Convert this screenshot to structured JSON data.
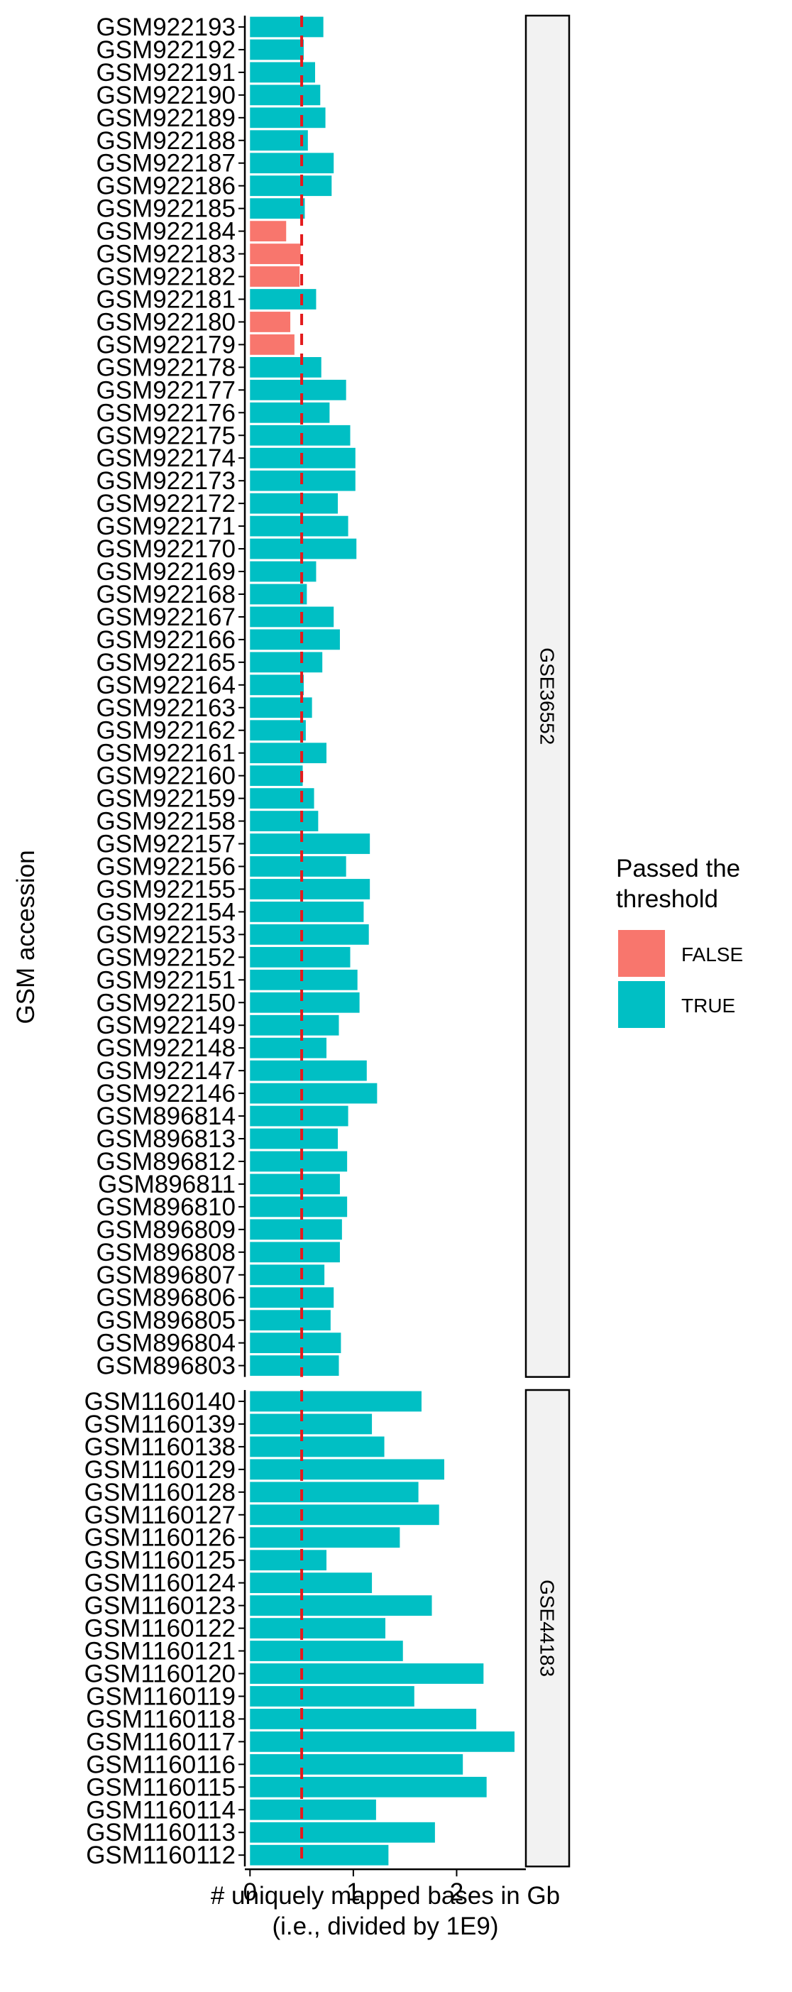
{
  "chart_data": {
    "type": "bar",
    "orientation": "horizontal",
    "xlabel_lines": [
      "# uniquely mapped bases in Gb",
      "(i.e., divided by 1E9)"
    ],
    "ylabel": "GSM accession",
    "x_ticks": [
      0,
      1,
      2
    ],
    "xlim": [
      -0.05,
      2.67
    ],
    "threshold": 0.5,
    "legend": {
      "title_lines": [
        "Passed the",
        "threshold"
      ],
      "position": "right",
      "items": [
        {
          "label": "FALSE",
          "color": "#F8766D"
        },
        {
          "label": "TRUE",
          "color": "#00BFC4"
        }
      ]
    },
    "colors": {
      "TRUE": "#00BFC4",
      "FALSE": "#F8766D",
      "threshold_line": "#E41A1C",
      "strip_fill": "#F2F2F2"
    },
    "panels": [
      {
        "name": "GSE36552",
        "bars": [
          {
            "label": "GSM922193",
            "value": 0.71,
            "passed": "TRUE"
          },
          {
            "label": "GSM922192",
            "value": 0.52,
            "passed": "TRUE"
          },
          {
            "label": "GSM922191",
            "value": 0.63,
            "passed": "TRUE"
          },
          {
            "label": "GSM922190",
            "value": 0.68,
            "passed": "TRUE"
          },
          {
            "label": "GSM922189",
            "value": 0.73,
            "passed": "TRUE"
          },
          {
            "label": "GSM922188",
            "value": 0.56,
            "passed": "TRUE"
          },
          {
            "label": "GSM922187",
            "value": 0.81,
            "passed": "TRUE"
          },
          {
            "label": "GSM922186",
            "value": 0.79,
            "passed": "TRUE"
          },
          {
            "label": "GSM922185",
            "value": 0.53,
            "passed": "TRUE"
          },
          {
            "label": "GSM922184",
            "value": 0.35,
            "passed": "FALSE"
          },
          {
            "label": "GSM922183",
            "value": 0.49,
            "passed": "FALSE"
          },
          {
            "label": "GSM922182",
            "value": 0.48,
            "passed": "FALSE"
          },
          {
            "label": "GSM922181",
            "value": 0.64,
            "passed": "TRUE"
          },
          {
            "label": "GSM922180",
            "value": 0.39,
            "passed": "FALSE"
          },
          {
            "label": "GSM922179",
            "value": 0.43,
            "passed": "FALSE"
          },
          {
            "label": "GSM922178",
            "value": 0.69,
            "passed": "TRUE"
          },
          {
            "label": "GSM922177",
            "value": 0.93,
            "passed": "TRUE"
          },
          {
            "label": "GSM922176",
            "value": 0.77,
            "passed": "TRUE"
          },
          {
            "label": "GSM922175",
            "value": 0.97,
            "passed": "TRUE"
          },
          {
            "label": "GSM922174",
            "value": 1.02,
            "passed": "TRUE"
          },
          {
            "label": "GSM922173",
            "value": 1.02,
            "passed": "TRUE"
          },
          {
            "label": "GSM922172",
            "value": 0.85,
            "passed": "TRUE"
          },
          {
            "label": "GSM922171",
            "value": 0.95,
            "passed": "TRUE"
          },
          {
            "label": "GSM922170",
            "value": 1.03,
            "passed": "TRUE"
          },
          {
            "label": "GSM922169",
            "value": 0.64,
            "passed": "TRUE"
          },
          {
            "label": "GSM922168",
            "value": 0.55,
            "passed": "TRUE"
          },
          {
            "label": "GSM922167",
            "value": 0.81,
            "passed": "TRUE"
          },
          {
            "label": "GSM922166",
            "value": 0.87,
            "passed": "TRUE"
          },
          {
            "label": "GSM922165",
            "value": 0.7,
            "passed": "TRUE"
          },
          {
            "label": "GSM922164",
            "value": 0.52,
            "passed": "TRUE"
          },
          {
            "label": "GSM922163",
            "value": 0.6,
            "passed": "TRUE"
          },
          {
            "label": "GSM922162",
            "value": 0.54,
            "passed": "TRUE"
          },
          {
            "label": "GSM922161",
            "value": 0.74,
            "passed": "TRUE"
          },
          {
            "label": "GSM922160",
            "value": 0.51,
            "passed": "TRUE"
          },
          {
            "label": "GSM922159",
            "value": 0.62,
            "passed": "TRUE"
          },
          {
            "label": "GSM922158",
            "value": 0.66,
            "passed": "TRUE"
          },
          {
            "label": "GSM922157",
            "value": 1.16,
            "passed": "TRUE"
          },
          {
            "label": "GSM922156",
            "value": 0.93,
            "passed": "TRUE"
          },
          {
            "label": "GSM922155",
            "value": 1.16,
            "passed": "TRUE"
          },
          {
            "label": "GSM922154",
            "value": 1.1,
            "passed": "TRUE"
          },
          {
            "label": "GSM922153",
            "value": 1.15,
            "passed": "TRUE"
          },
          {
            "label": "GSM922152",
            "value": 0.97,
            "passed": "TRUE"
          },
          {
            "label": "GSM922151",
            "value": 1.04,
            "passed": "TRUE"
          },
          {
            "label": "GSM922150",
            "value": 1.06,
            "passed": "TRUE"
          },
          {
            "label": "GSM922149",
            "value": 0.86,
            "passed": "TRUE"
          },
          {
            "label": "GSM922148",
            "value": 0.74,
            "passed": "TRUE"
          },
          {
            "label": "GSM922147",
            "value": 1.13,
            "passed": "TRUE"
          },
          {
            "label": "GSM922146",
            "value": 1.23,
            "passed": "TRUE"
          },
          {
            "label": "GSM896814",
            "value": 0.95,
            "passed": "TRUE"
          },
          {
            "label": "GSM896813",
            "value": 0.85,
            "passed": "TRUE"
          },
          {
            "label": "GSM896812",
            "value": 0.94,
            "passed": "TRUE"
          },
          {
            "label": "GSM896811",
            "value": 0.87,
            "passed": "TRUE"
          },
          {
            "label": "GSM896810",
            "value": 0.94,
            "passed": "TRUE"
          },
          {
            "label": "GSM896809",
            "value": 0.89,
            "passed": "TRUE"
          },
          {
            "label": "GSM896808",
            "value": 0.87,
            "passed": "TRUE"
          },
          {
            "label": "GSM896807",
            "value": 0.72,
            "passed": "TRUE"
          },
          {
            "label": "GSM896806",
            "value": 0.81,
            "passed": "TRUE"
          },
          {
            "label": "GSM896805",
            "value": 0.78,
            "passed": "TRUE"
          },
          {
            "label": "GSM896804",
            "value": 0.88,
            "passed": "TRUE"
          },
          {
            "label": "GSM896803",
            "value": 0.86,
            "passed": "TRUE"
          }
        ]
      },
      {
        "name": "GSE44183",
        "bars": [
          {
            "label": "GSM1160140",
            "value": 1.66,
            "passed": "TRUE"
          },
          {
            "label": "GSM1160139",
            "value": 1.18,
            "passed": "TRUE"
          },
          {
            "label": "GSM1160138",
            "value": 1.3,
            "passed": "TRUE"
          },
          {
            "label": "GSM1160129",
            "value": 1.88,
            "passed": "TRUE"
          },
          {
            "label": "GSM1160128",
            "value": 1.63,
            "passed": "TRUE"
          },
          {
            "label": "GSM1160127",
            "value": 1.83,
            "passed": "TRUE"
          },
          {
            "label": "GSM1160126",
            "value": 1.45,
            "passed": "TRUE"
          },
          {
            "label": "GSM1160125",
            "value": 0.74,
            "passed": "TRUE"
          },
          {
            "label": "GSM1160124",
            "value": 1.18,
            "passed": "TRUE"
          },
          {
            "label": "GSM1160123",
            "value": 1.76,
            "passed": "TRUE"
          },
          {
            "label": "GSM1160122",
            "value": 1.31,
            "passed": "TRUE"
          },
          {
            "label": "GSM1160121",
            "value": 1.48,
            "passed": "TRUE"
          },
          {
            "label": "GSM1160120",
            "value": 2.26,
            "passed": "TRUE"
          },
          {
            "label": "GSM1160119",
            "value": 1.59,
            "passed": "TRUE"
          },
          {
            "label": "GSM1160118",
            "value": 2.19,
            "passed": "TRUE"
          },
          {
            "label": "GSM1160117",
            "value": 2.56,
            "passed": "TRUE"
          },
          {
            "label": "GSM1160116",
            "value": 2.06,
            "passed": "TRUE"
          },
          {
            "label": "GSM1160115",
            "value": 2.29,
            "passed": "TRUE"
          },
          {
            "label": "GSM1160114",
            "value": 1.22,
            "passed": "TRUE"
          },
          {
            "label": "GSM1160113",
            "value": 1.79,
            "passed": "TRUE"
          },
          {
            "label": "GSM1160112",
            "value": 1.34,
            "passed": "TRUE"
          }
        ]
      }
    ]
  }
}
